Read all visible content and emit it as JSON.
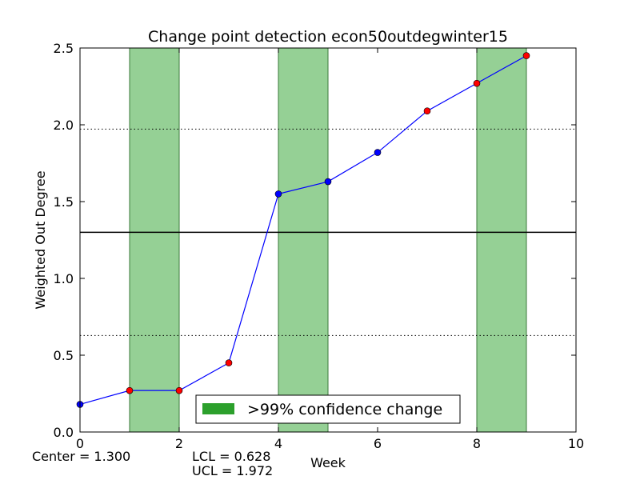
{
  "chart_data": {
    "type": "line",
    "title": "Change point detection econ50outdegwinter15",
    "xlabel": "Week",
    "ylabel": "Weighted Out Degree",
    "xlim": [
      0,
      10
    ],
    "ylim": [
      0.0,
      2.5
    ],
    "x_ticks": [
      0,
      2,
      4,
      6,
      8,
      10
    ],
    "x_tick_labels": [
      "0",
      "2",
      "4",
      "6",
      "8",
      "10"
    ],
    "y_ticks": [
      0.0,
      0.5,
      1.0,
      1.5,
      2.0,
      2.5
    ],
    "y_tick_labels": [
      "0.0",
      "0.5",
      "1.0",
      "1.5",
      "2.0",
      "2.5"
    ],
    "series": [
      {
        "x": [
          0,
          1,
          2,
          3,
          4,
          5,
          6,
          7,
          8,
          9
        ],
        "values": [
          0.18,
          0.27,
          0.27,
          0.45,
          1.55,
          1.63,
          1.82,
          2.09,
          2.27,
          2.45
        ],
        "point_colors": [
          "blue",
          "red",
          "red",
          "red",
          "blue",
          "blue",
          "blue",
          "red",
          "red",
          "red"
        ]
      }
    ],
    "reference_lines": {
      "center": 1.3,
      "lcl": 0.628,
      "ucl": 1.972
    },
    "change_regions": [
      [
        1,
        2
      ],
      [
        4,
        5
      ],
      [
        8,
        9
      ]
    ],
    "legend": {
      "label": ">99% confidence change",
      "placement": "lower center"
    },
    "stats": {
      "center_text": "Center = 1.300",
      "lcl_text": "LCL = 0.628",
      "ucl_text": "UCL = 1.972"
    },
    "colors": {
      "line": "#0000ff",
      "point_in": "#0000ff",
      "point_change": "#ff0000",
      "region_fill": "#95d095",
      "region_edge": "#3a7a3a",
      "legend_swatch": "#2ca02c"
    }
  }
}
